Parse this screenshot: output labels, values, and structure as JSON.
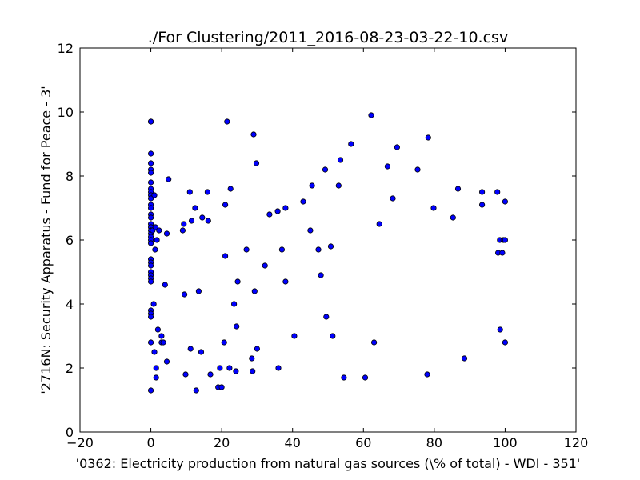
{
  "chart_data": {
    "type": "scatter",
    "title": "./For Clustering/2011_2016-08-23-03-22-10.csv",
    "xlabel": "'0362: Electricity production from natural gas sources  (\\% of total) - WDI - 351'",
    "ylabel": "'2716N: Security Apparatus - Fund for Peace - 3'",
    "xlim": [
      -20,
      120
    ],
    "ylim": [
      0,
      12
    ],
    "xticks": [
      -20,
      0,
      20,
      40,
      60,
      80,
      100,
      120
    ],
    "yticks": [
      0,
      2,
      4,
      6,
      8,
      10,
      12
    ],
    "xtick_labels": [
      "−20",
      "0",
      "20",
      "40",
      "60",
      "80",
      "100",
      "120"
    ],
    "ytick_labels": [
      "0",
      "2",
      "4",
      "6",
      "8",
      "10",
      "12"
    ],
    "grid": false,
    "marker_color": "#0000ff",
    "points": [
      [
        0,
        9.7
      ],
      [
        0,
        9.7
      ],
      [
        0,
        8.7
      ],
      [
        0,
        8.4
      ],
      [
        0,
        8.2
      ],
      [
        0,
        8.1
      ],
      [
        0,
        7.8
      ],
      [
        0,
        7.6
      ],
      [
        0,
        7.5
      ],
      [
        0,
        7.4
      ],
      [
        0,
        7.3
      ],
      [
        0,
        7.1
      ],
      [
        0,
        7.0
      ],
      [
        0,
        6.8
      ],
      [
        0,
        6.7
      ],
      [
        0,
        6.5
      ],
      [
        0,
        6.4
      ],
      [
        0,
        6.3
      ],
      [
        0,
        6.2
      ],
      [
        0,
        6.1
      ],
      [
        0,
        6.0
      ],
      [
        0,
        5.9
      ],
      [
        0,
        5.4
      ],
      [
        0,
        5.3
      ],
      [
        0,
        5.2
      ],
      [
        0,
        5.0
      ],
      [
        0,
        4.9
      ],
      [
        0,
        4.8
      ],
      [
        0,
        4.7
      ],
      [
        0,
        3.8
      ],
      [
        0,
        3.7
      ],
      [
        0,
        3.6
      ],
      [
        0,
        2.8
      ],
      [
        0,
        1.3
      ],
      [
        0.5,
        6.3
      ],
      [
        0.8,
        4.0
      ],
      [
        1,
        7.4
      ],
      [
        1,
        2.5
      ],
      [
        1.2,
        5.7
      ],
      [
        1.3,
        6.4
      ],
      [
        1.5,
        2.0
      ],
      [
        1.5,
        1.7
      ],
      [
        1.7,
        6.0
      ],
      [
        2,
        3.2
      ],
      [
        2.3,
        6.3
      ],
      [
        3,
        3.0
      ],
      [
        3,
        2.8
      ],
      [
        3.5,
        2.8
      ],
      [
        4,
        4.6
      ],
      [
        4.5,
        6.2
      ],
      [
        4.5,
        2.2
      ],
      [
        5,
        7.9
      ],
      [
        9,
        6.3
      ],
      [
        9.3,
        6.5
      ],
      [
        9.5,
        4.3
      ],
      [
        9.8,
        1.8
      ],
      [
        11,
        7.5
      ],
      [
        11.2,
        2.6
      ],
      [
        11.5,
        6.6
      ],
      [
        12.5,
        7.0
      ],
      [
        12.8,
        1.3
      ],
      [
        13.5,
        4.4
      ],
      [
        14.2,
        2.5
      ],
      [
        14.5,
        6.7
      ],
      [
        16,
        7.5
      ],
      [
        16.2,
        6.6
      ],
      [
        16.8,
        1.8
      ],
      [
        19,
        1.4
      ],
      [
        19.5,
        2.0
      ],
      [
        20,
        1.4
      ],
      [
        20.7,
        2.8
      ],
      [
        21,
        7.1
      ],
      [
        21,
        5.5
      ],
      [
        21.5,
        9.7
      ],
      [
        22.2,
        2.0
      ],
      [
        22.5,
        7.6
      ],
      [
        23.5,
        4.0
      ],
      [
        24,
        1.9
      ],
      [
        24.2,
        3.3
      ],
      [
        24.5,
        4.7
      ],
      [
        27,
        5.7
      ],
      [
        28.5,
        2.3
      ],
      [
        28.7,
        1.9
      ],
      [
        29,
        9.3
      ],
      [
        29.3,
        4.4
      ],
      [
        29.8,
        8.4
      ],
      [
        30,
        2.6
      ],
      [
        32.2,
        5.2
      ],
      [
        33.5,
        6.8
      ],
      [
        35.8,
        6.9
      ],
      [
        36,
        2.0
      ],
      [
        37,
        5.7
      ],
      [
        38,
        7.0
      ],
      [
        38,
        4.7
      ],
      [
        40.5,
        3.0
      ],
      [
        43,
        7.2
      ],
      [
        45,
        6.3
      ],
      [
        45.5,
        7.7
      ],
      [
        47.3,
        5.7
      ],
      [
        48,
        4.9
      ],
      [
        49.2,
        8.2
      ],
      [
        49.5,
        3.6
      ],
      [
        50.8,
        5.8
      ],
      [
        51.3,
        3.0
      ],
      [
        53,
        7.7
      ],
      [
        53.5,
        8.5
      ],
      [
        54.5,
        1.7
      ],
      [
        56.5,
        9.0
      ],
      [
        60.5,
        1.7
      ],
      [
        62.2,
        9.9
      ],
      [
        63,
        2.8
      ],
      [
        64.5,
        6.5
      ],
      [
        66.8,
        8.3
      ],
      [
        68.3,
        7.3
      ],
      [
        69.5,
        8.9
      ],
      [
        75.3,
        8.2
      ],
      [
        78,
        1.8
      ],
      [
        78.3,
        9.2
      ],
      [
        79.8,
        7.0
      ],
      [
        85.3,
        6.7
      ],
      [
        86.7,
        7.6
      ],
      [
        88.5,
        2.3
      ],
      [
        93.5,
        7.5
      ],
      [
        93.5,
        7.1
      ],
      [
        97.8,
        7.5
      ],
      [
        98,
        5.6
      ],
      [
        98.5,
        6.0
      ],
      [
        98.6,
        3.2
      ],
      [
        99.2,
        5.6
      ],
      [
        99.5,
        6.0
      ],
      [
        100,
        6.0
      ],
      [
        100,
        7.2
      ],
      [
        100,
        2.8
      ]
    ]
  }
}
